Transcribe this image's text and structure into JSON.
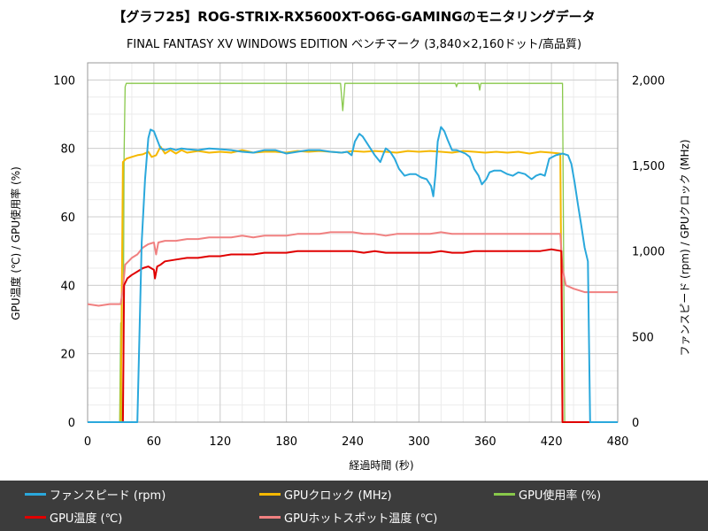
{
  "chart_data": {
    "type": "line",
    "title": "【グラフ25】ROG-STRIX-RX5600XT-O6G-GAMINGのモニタリングデータ",
    "subtitle": "FINAL FANTASY XV WINDOWS EDITION ベンチマーク (3,840×2,160ドット/高品質)",
    "xlabel": "経過時間 (秒)",
    "ylabel": "GPU温度 (℃) / GPU使用率 (%)",
    "y2label": "ファンスピード (rpm) / GPUクロック (MHz)",
    "xlim": [
      0,
      480
    ],
    "ylim": [
      0,
      105
    ],
    "y2lim": [
      0,
      2100
    ],
    "x_ticks": [
      "0",
      "60",
      "120",
      "180",
      "240",
      "300",
      "360",
      "420",
      "480"
    ],
    "y_ticks": [
      "0",
      "20",
      "40",
      "60",
      "80",
      "100"
    ],
    "y2_ticks": [
      "0",
      "500",
      "1,000",
      "1,500",
      "2,000"
    ],
    "grid": true,
    "legend_position": "bottom",
    "series": [
      {
        "name": "ファンスピード (rpm)",
        "axis": "right",
        "color": "#2aa8dc",
        "points": [
          [
            0,
            0
          ],
          [
            41,
            0
          ],
          [
            45,
            0
          ],
          [
            49,
            1050
          ],
          [
            52,
            1420
          ],
          [
            55,
            1660
          ],
          [
            57,
            1710
          ],
          [
            60,
            1700
          ],
          [
            63,
            1650
          ],
          [
            66,
            1600
          ],
          [
            70,
            1590
          ],
          [
            75,
            1600
          ],
          [
            80,
            1590
          ],
          [
            85,
            1600
          ],
          [
            90,
            1595
          ],
          [
            100,
            1590
          ],
          [
            110,
            1600
          ],
          [
            120,
            1595
          ],
          [
            130,
            1590
          ],
          [
            140,
            1580
          ],
          [
            150,
            1575
          ],
          [
            160,
            1590
          ],
          [
            170,
            1590
          ],
          [
            180,
            1570
          ],
          [
            190,
            1580
          ],
          [
            200,
            1590
          ],
          [
            210,
            1590
          ],
          [
            220,
            1580
          ],
          [
            230,
            1575
          ],
          [
            235,
            1580
          ],
          [
            239,
            1560
          ],
          [
            242,
            1640
          ],
          [
            246,
            1685
          ],
          [
            249,
            1670
          ],
          [
            252,
            1640
          ],
          [
            256,
            1600
          ],
          [
            260,
            1560
          ],
          [
            265,
            1520
          ],
          [
            268,
            1570
          ],
          [
            270,
            1600
          ],
          [
            274,
            1580
          ],
          [
            278,
            1540
          ],
          [
            282,
            1480
          ],
          [
            287,
            1440
          ],
          [
            292,
            1450
          ],
          [
            297,
            1450
          ],
          [
            302,
            1430
          ],
          [
            307,
            1420
          ],
          [
            311,
            1380
          ],
          [
            313,
            1320
          ],
          [
            315,
            1450
          ],
          [
            317,
            1640
          ],
          [
            320,
            1725
          ],
          [
            323,
            1700
          ],
          [
            326,
            1650
          ],
          [
            330,
            1590
          ],
          [
            334,
            1590
          ],
          [
            338,
            1580
          ],
          [
            342,
            1570
          ],
          [
            346,
            1550
          ],
          [
            350,
            1480
          ],
          [
            354,
            1440
          ],
          [
            357,
            1390
          ],
          [
            361,
            1420
          ],
          [
            364,
            1460
          ],
          [
            368,
            1470
          ],
          [
            374,
            1470
          ],
          [
            380,
            1450
          ],
          [
            385,
            1440
          ],
          [
            390,
            1460
          ],
          [
            396,
            1450
          ],
          [
            402,
            1420
          ],
          [
            406,
            1440
          ],
          [
            410,
            1450
          ],
          [
            414,
            1440
          ],
          [
            418,
            1540
          ],
          [
            424,
            1560
          ],
          [
            430,
            1570
          ],
          [
            435,
            1560
          ],
          [
            438,
            1510
          ],
          [
            441,
            1400
          ],
          [
            444,
            1270
          ],
          [
            447,
            1150
          ],
          [
            450,
            1020
          ],
          [
            453,
            940
          ],
          [
            455,
            0
          ],
          [
            480,
            0
          ]
        ]
      },
      {
        "name": "GPUクロック (MHz)",
        "axis": "right",
        "color": "#f5b800",
        "points": [
          [
            0,
            0
          ],
          [
            30,
            0
          ],
          [
            32,
            1520
          ],
          [
            35,
            1540
          ],
          [
            40,
            1550
          ],
          [
            45,
            1560
          ],
          [
            50,
            1565
          ],
          [
            55,
            1580
          ],
          [
            58,
            1550
          ],
          [
            62,
            1560
          ],
          [
            66,
            1610
          ],
          [
            70,
            1570
          ],
          [
            75,
            1590
          ],
          [
            80,
            1570
          ],
          [
            85,
            1590
          ],
          [
            90,
            1575
          ],
          [
            100,
            1585
          ],
          [
            110,
            1575
          ],
          [
            120,
            1580
          ],
          [
            130,
            1575
          ],
          [
            140,
            1590
          ],
          [
            150,
            1575
          ],
          [
            160,
            1580
          ],
          [
            170,
            1580
          ],
          [
            180,
            1575
          ],
          [
            190,
            1585
          ],
          [
            200,
            1580
          ],
          [
            210,
            1585
          ],
          [
            220,
            1580
          ],
          [
            230,
            1575
          ],
          [
            240,
            1585
          ],
          [
            250,
            1580
          ],
          [
            260,
            1585
          ],
          [
            270,
            1580
          ],
          [
            280,
            1575
          ],
          [
            290,
            1585
          ],
          [
            300,
            1580
          ],
          [
            310,
            1585
          ],
          [
            320,
            1580
          ],
          [
            330,
            1575
          ],
          [
            340,
            1585
          ],
          [
            350,
            1580
          ],
          [
            360,
            1575
          ],
          [
            370,
            1580
          ],
          [
            380,
            1575
          ],
          [
            390,
            1580
          ],
          [
            400,
            1570
          ],
          [
            410,
            1580
          ],
          [
            420,
            1575
          ],
          [
            428,
            1570
          ],
          [
            430,
            0
          ],
          [
            480,
            0
          ]
        ]
      },
      {
        "name": "GPU使用率 (%)",
        "axis": "left",
        "color": "#88c84a",
        "points": [
          [
            0,
            0
          ],
          [
            29,
            0
          ],
          [
            30,
            29
          ],
          [
            31,
            0
          ],
          [
            32,
            0
          ],
          [
            33,
            78
          ],
          [
            34,
            98
          ],
          [
            35,
            99
          ],
          [
            100,
            99
          ],
          [
            150,
            99
          ],
          [
            200,
            99
          ],
          [
            229,
            99
          ],
          [
            231,
            91
          ],
          [
            233,
            99
          ],
          [
            300,
            99
          ],
          [
            333,
            99
          ],
          [
            334,
            98
          ],
          [
            335,
            99
          ],
          [
            354,
            99
          ],
          [
            355,
            97
          ],
          [
            356,
            99
          ],
          [
            400,
            99
          ],
          [
            430,
            99
          ],
          [
            432,
            0
          ],
          [
            480,
            0
          ]
        ]
      },
      {
        "name": "GPU温度 (℃)",
        "axis": "left",
        "color": "#e00000",
        "points": [
          [
            0,
            0
          ],
          [
            32,
            0
          ],
          [
            33,
            40
          ],
          [
            36,
            42
          ],
          [
            40,
            43
          ],
          [
            45,
            44
          ],
          [
            50,
            45
          ],
          [
            55,
            45.5
          ],
          [
            60,
            44.5
          ],
          [
            61,
            42
          ],
          [
            63,
            45.5
          ],
          [
            66,
            46
          ],
          [
            70,
            47
          ],
          [
            80,
            47.5
          ],
          [
            90,
            48
          ],
          [
            100,
            48
          ],
          [
            110,
            48.5
          ],
          [
            120,
            48.5
          ],
          [
            130,
            49
          ],
          [
            140,
            49
          ],
          [
            150,
            49
          ],
          [
            160,
            49.5
          ],
          [
            170,
            49.5
          ],
          [
            180,
            49.5
          ],
          [
            190,
            50
          ],
          [
            200,
            50
          ],
          [
            210,
            50
          ],
          [
            220,
            50
          ],
          [
            230,
            50
          ],
          [
            240,
            50
          ],
          [
            250,
            49.5
          ],
          [
            260,
            50
          ],
          [
            270,
            49.5
          ],
          [
            280,
            49.5
          ],
          [
            290,
            49.5
          ],
          [
            300,
            49.5
          ],
          [
            310,
            49.5
          ],
          [
            320,
            50
          ],
          [
            330,
            49.5
          ],
          [
            340,
            49.5
          ],
          [
            350,
            50
          ],
          [
            360,
            50
          ],
          [
            370,
            50
          ],
          [
            380,
            50
          ],
          [
            390,
            50
          ],
          [
            400,
            50
          ],
          [
            410,
            50
          ],
          [
            420,
            50.5
          ],
          [
            429,
            50
          ],
          [
            430,
            0
          ],
          [
            480,
            0
          ]
        ]
      },
      {
        "name": "GPUホットスポット温度 (℃)",
        "axis": "left",
        "color": "#f08080",
        "points": [
          [
            0,
            34.5
          ],
          [
            10,
            34
          ],
          [
            20,
            34.5
          ],
          [
            30,
            34.5
          ],
          [
            32,
            39
          ],
          [
            34,
            46
          ],
          [
            37,
            47
          ],
          [
            40,
            48
          ],
          [
            45,
            49
          ],
          [
            50,
            51
          ],
          [
            55,
            52
          ],
          [
            60,
            52.5
          ],
          [
            62,
            49
          ],
          [
            64,
            52.5
          ],
          [
            70,
            53
          ],
          [
            80,
            53
          ],
          [
            90,
            53.5
          ],
          [
            100,
            53.5
          ],
          [
            110,
            54
          ],
          [
            120,
            54
          ],
          [
            130,
            54
          ],
          [
            140,
            54.5
          ],
          [
            150,
            54
          ],
          [
            160,
            54.5
          ],
          [
            170,
            54.5
          ],
          [
            180,
            54.5
          ],
          [
            190,
            55
          ],
          [
            200,
            55
          ],
          [
            210,
            55
          ],
          [
            220,
            55.5
          ],
          [
            230,
            55.5
          ],
          [
            240,
            55.5
          ],
          [
            250,
            55
          ],
          [
            260,
            55
          ],
          [
            270,
            54.5
          ],
          [
            280,
            55
          ],
          [
            290,
            55
          ],
          [
            300,
            55
          ],
          [
            310,
            55
          ],
          [
            320,
            55.5
          ],
          [
            330,
            55
          ],
          [
            340,
            55
          ],
          [
            350,
            55
          ],
          [
            360,
            55
          ],
          [
            370,
            55
          ],
          [
            380,
            55
          ],
          [
            390,
            55
          ],
          [
            400,
            55
          ],
          [
            410,
            55
          ],
          [
            420,
            55
          ],
          [
            428,
            55
          ],
          [
            430,
            45
          ],
          [
            433,
            40
          ],
          [
            440,
            39
          ],
          [
            450,
            38
          ],
          [
            460,
            38
          ],
          [
            470,
            38
          ],
          [
            480,
            38
          ]
        ]
      }
    ]
  }
}
